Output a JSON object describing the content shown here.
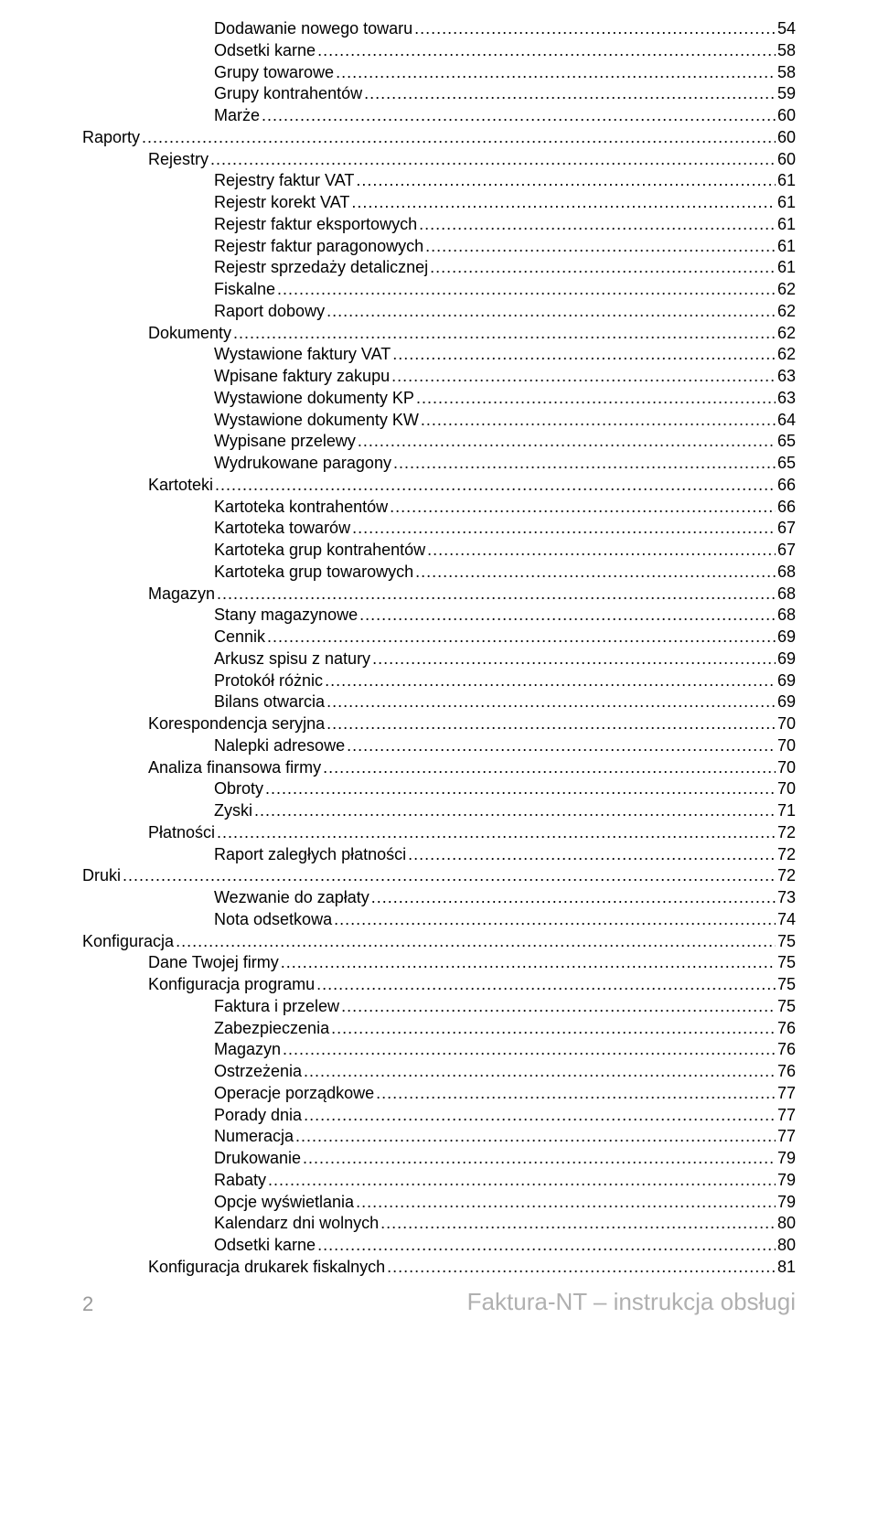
{
  "toc": [
    {
      "level": 3,
      "label": "Dodawanie nowego towaru",
      "page": "54"
    },
    {
      "level": 3,
      "label": "Odsetki karne",
      "page": "58"
    },
    {
      "level": 3,
      "label": "Grupy towarowe",
      "page": "58"
    },
    {
      "level": 3,
      "label": "Grupy kontrahentów",
      "page": "59"
    },
    {
      "level": 3,
      "label": "Marże",
      "page": "60"
    },
    {
      "level": 1,
      "label": "Raporty",
      "page": "60"
    },
    {
      "level": 2,
      "label": "Rejestry",
      "page": "60"
    },
    {
      "level": 3,
      "label": "Rejestry faktur VAT",
      "page": "61"
    },
    {
      "level": 3,
      "label": "Rejestr korekt VAT",
      "page": "61"
    },
    {
      "level": 3,
      "label": "Rejestr faktur eksportowych",
      "page": "61"
    },
    {
      "level": 3,
      "label": "Rejestr faktur paragonowych",
      "page": "61"
    },
    {
      "level": 3,
      "label": "Rejestr sprzedaży detalicznej",
      "page": "61"
    },
    {
      "level": 3,
      "label": "Fiskalne",
      "page": "62"
    },
    {
      "level": 3,
      "label": "Raport dobowy",
      "page": "62"
    },
    {
      "level": 2,
      "label": "Dokumenty",
      "page": "62"
    },
    {
      "level": 3,
      "label": "Wystawione faktury VAT",
      "page": "62"
    },
    {
      "level": 3,
      "label": "Wpisane faktury zakupu",
      "page": "63"
    },
    {
      "level": 3,
      "label": "Wystawione dokumenty KP",
      "page": "63"
    },
    {
      "level": 3,
      "label": "Wystawione dokumenty KW",
      "page": "64"
    },
    {
      "level": 3,
      "label": "Wypisane przelewy",
      "page": "65"
    },
    {
      "level": 3,
      "label": "Wydrukowane paragony",
      "page": "65"
    },
    {
      "level": 2,
      "label": "Kartoteki",
      "page": "66"
    },
    {
      "level": 3,
      "label": "Kartoteka kontrahentów",
      "page": "66"
    },
    {
      "level": 3,
      "label": "Kartoteka towarów",
      "page": "67"
    },
    {
      "level": 3,
      "label": "Kartoteka grup kontrahentów",
      "page": "67"
    },
    {
      "level": 3,
      "label": "Kartoteka grup towarowych",
      "page": "68"
    },
    {
      "level": 2,
      "label": "Magazyn",
      "page": "68"
    },
    {
      "level": 3,
      "label": "Stany magazynowe",
      "page": "68"
    },
    {
      "level": 3,
      "label": "Cennik",
      "page": "69"
    },
    {
      "level": 3,
      "label": "Arkusz spisu z natury",
      "page": "69"
    },
    {
      "level": 3,
      "label": "Protokół różnic",
      "page": "69"
    },
    {
      "level": 3,
      "label": "Bilans otwarcia",
      "page": "69"
    },
    {
      "level": 2,
      "label": "Korespondencja seryjna",
      "page": "70"
    },
    {
      "level": 3,
      "label": "Nalepki adresowe",
      "page": "70"
    },
    {
      "level": 2,
      "label": "Analiza finansowa firmy",
      "page": "70"
    },
    {
      "level": 3,
      "label": "Obroty",
      "page": "70"
    },
    {
      "level": 3,
      "label": "Zyski",
      "page": "71"
    },
    {
      "level": 2,
      "label": "Płatności",
      "page": "72"
    },
    {
      "level": 3,
      "label": "Raport zaległych płatności",
      "page": "72"
    },
    {
      "level": 1,
      "label": "Druki",
      "page": "72"
    },
    {
      "level": 3,
      "label": "Wezwanie do zapłaty",
      "page": "73"
    },
    {
      "level": 3,
      "label": "Nota odsetkowa",
      "page": "74"
    },
    {
      "level": 1,
      "label": "Konfiguracja",
      "page": "75"
    },
    {
      "level": 2,
      "label": "Dane Twojej firmy",
      "page": "75"
    },
    {
      "level": 2,
      "label": "Konfiguracja programu",
      "page": "75"
    },
    {
      "level": 3,
      "label": "Faktura i przelew",
      "page": "75"
    },
    {
      "level": 3,
      "label": "Zabezpieczenia",
      "page": "76"
    },
    {
      "level": 3,
      "label": "Magazyn",
      "page": "76"
    },
    {
      "level": 3,
      "label": "Ostrzeżenia",
      "page": "76"
    },
    {
      "level": 3,
      "label": "Operacje porządkowe",
      "page": "77"
    },
    {
      "level": 3,
      "label": "Porady dnia",
      "page": "77"
    },
    {
      "level": 3,
      "label": "Numeracja",
      "page": "77"
    },
    {
      "level": 3,
      "label": "Drukowanie",
      "page": "79"
    },
    {
      "level": 3,
      "label": "Rabaty",
      "page": "79"
    },
    {
      "level": 3,
      "label": "Opcje wyświetlania",
      "page": "79"
    },
    {
      "level": 3,
      "label": "Kalendarz dni wolnych",
      "page": "80"
    },
    {
      "level": 3,
      "label": "Odsetki karne",
      "page": "80"
    },
    {
      "level": 2,
      "label": "Konfiguracja drukarek fiskalnych",
      "page": "81"
    }
  ],
  "footer": {
    "page_number": "2",
    "title": "Faktura-NT – instrukcja obsługi"
  }
}
